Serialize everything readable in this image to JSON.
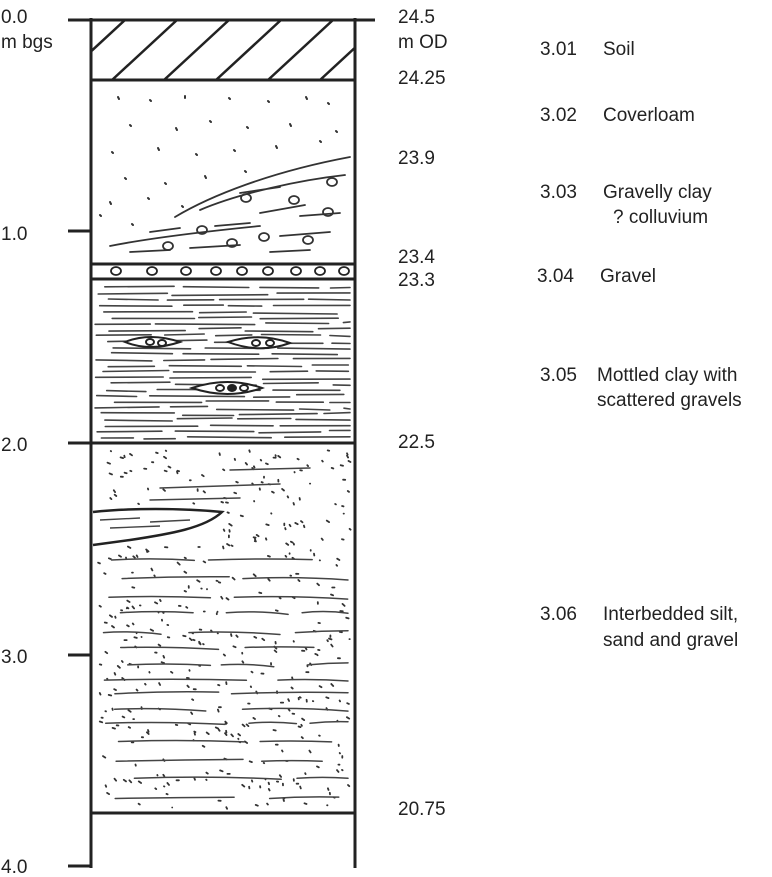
{
  "depth_axis": {
    "top_labels": [
      "0.0",
      "m bgs"
    ],
    "ticks": [
      {
        "depth": 1.0,
        "label": "1.0"
      },
      {
        "depth": 2.0,
        "label": "2.0"
      },
      {
        "depth": 3.0,
        "label": "3.0"
      },
      {
        "depth": 4.0,
        "label": "4.0"
      }
    ]
  },
  "elevations": {
    "top": [
      "24.5",
      "m OD"
    ],
    "values": [
      {
        "depth": 0.25,
        "label": "24.25"
      },
      {
        "depth": 0.6,
        "label": "23.9"
      },
      {
        "depth": 1.1,
        "label": "23.4"
      },
      {
        "depth": 1.2,
        "label": "23.3"
      },
      {
        "depth": 2.0,
        "label": "22.5"
      },
      {
        "depth": 3.75,
        "label": "20.75"
      }
    ]
  },
  "units": [
    {
      "code": "3.01",
      "lines": [
        "Soil"
      ],
      "top": 0.0,
      "base": 0.25
    },
    {
      "code": "3.02",
      "lines": [
        "Coverloam"
      ],
      "top": 0.25,
      "base": 1.1
    },
    {
      "code": "3.03",
      "lines": [
        "Gravelly clay",
        "? colluvium"
      ],
      "top": 0.6,
      "base": 1.1
    },
    {
      "code": "3.04",
      "lines": [
        "Gravel"
      ],
      "top": 1.1,
      "base": 1.2
    },
    {
      "code": "3.05",
      "lines": [
        "Mottled clay with",
        "scattered gravels"
      ],
      "top": 1.2,
      "base": 2.0
    },
    {
      "code": "3.06",
      "lines": [
        "Interbedded silt,",
        "sand and gravel"
      ],
      "top": 2.0,
      "base": 3.75
    }
  ]
}
